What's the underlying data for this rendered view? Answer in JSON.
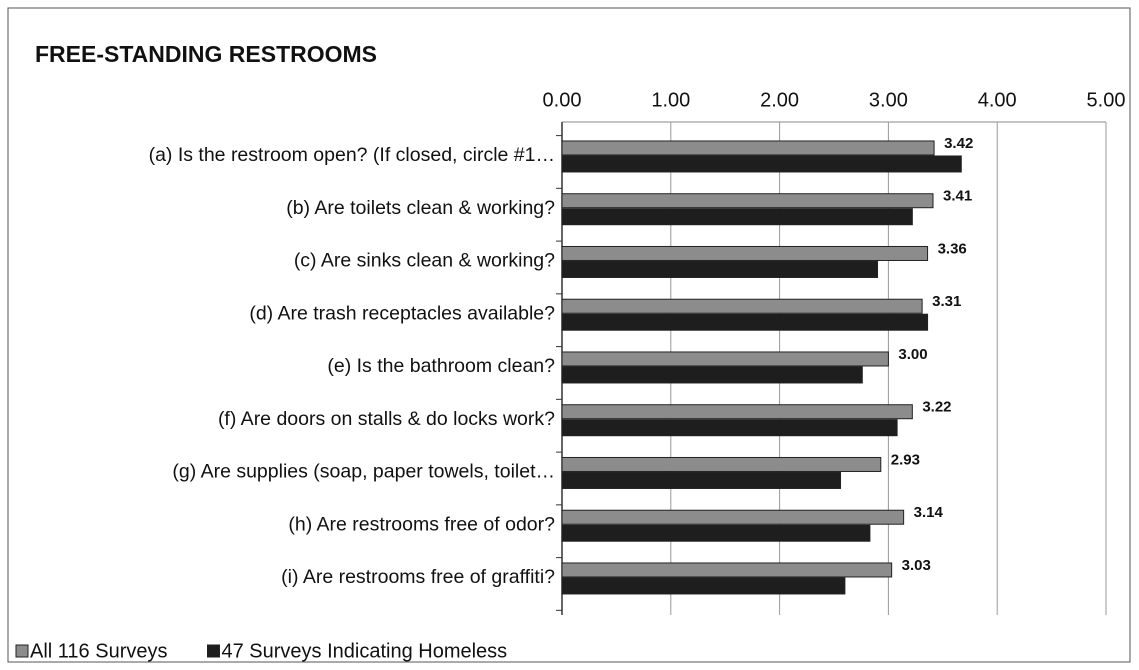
{
  "chart_data": {
    "type": "hbar",
    "title": "FREE-STANDING RESTROOMS",
    "categories": [
      "(a) Is the restroom open? (If closed, circle #1…",
      "(b) Are toilets clean & working?",
      "(c) Are sinks clean & working?",
      "(d) Are trash receptacles available?",
      "(e) Is the bathroom clean?",
      "(f)  Are doors on stalls & do locks work?",
      "(g) Are supplies (soap, paper towels, toilet…",
      "(h) Are restrooms free of odor?",
      "(i)  Are restrooms free of graffiti?"
    ],
    "series": [
      {
        "name": "All 116 Surveys",
        "color": "#8c8c8c",
        "values": [
          3.42,
          3.41,
          3.36,
          3.31,
          3.0,
          3.22,
          2.93,
          3.14,
          3.03
        ],
        "value_labels": [
          "3.42",
          "3.41",
          "3.36",
          "3.31",
          "3.00",
          "3.22",
          "2.93",
          "3.14",
          "3.03"
        ]
      },
      {
        "name": "47 Surveys Indicating Homeless",
        "color": "#1e1e1e",
        "values": [
          3.67,
          3.22,
          2.9,
          3.36,
          2.76,
          3.08,
          2.56,
          2.83,
          2.6
        ]
      }
    ],
    "xlim": [
      0,
      5
    ],
    "xticks": [
      {
        "value": 0,
        "label": "0.00"
      },
      {
        "value": 1,
        "label": "1.00"
      },
      {
        "value": 2,
        "label": "2.00"
      },
      {
        "value": 3,
        "label": "3.00"
      },
      {
        "value": 4,
        "label": "4.00"
      },
      {
        "value": 5,
        "label": "5.00"
      }
    ],
    "grid": true,
    "legend": "bottom-left"
  }
}
